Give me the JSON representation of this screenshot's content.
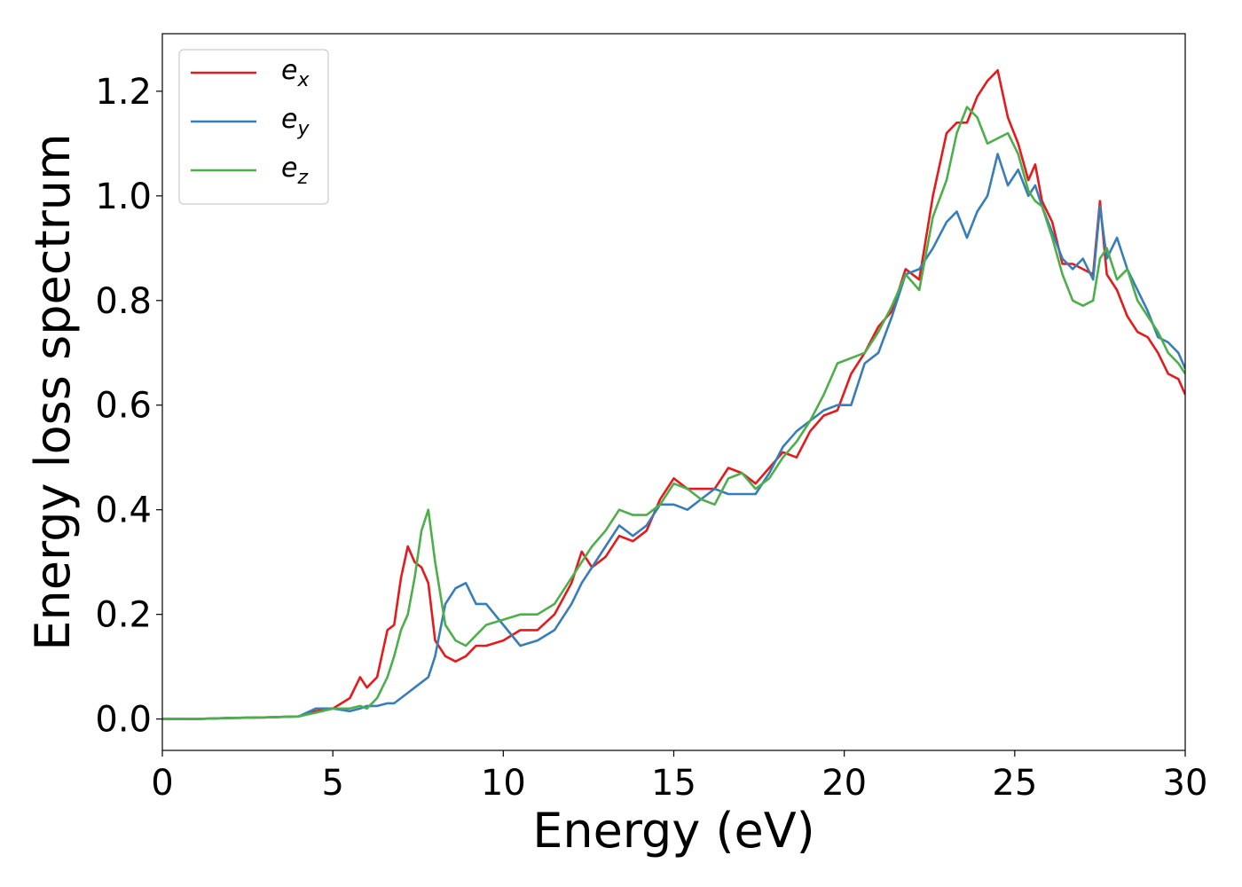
{
  "chart_data": {
    "type": "line",
    "title": "",
    "xlabel": "Energy (eV)",
    "ylabel": "Energy loss spectrum",
    "xlim": [
      0,
      30
    ],
    "ylim": [
      -0.06,
      1.31
    ],
    "xticks": [
      0,
      5,
      10,
      15,
      20,
      25,
      30
    ],
    "xtick_labels": [
      "0",
      "5",
      "10",
      "15",
      "20",
      "25",
      "30"
    ],
    "yticks": [
      0.0,
      0.2,
      0.4,
      0.6,
      0.8,
      1.0,
      1.2
    ],
    "ytick_labels": [
      "0.0",
      "0.2",
      "0.4",
      "0.6",
      "0.8",
      "1.0",
      "1.2"
    ],
    "grid": false,
    "legend_position": "top-left",
    "x": [
      0,
      1,
      2,
      3,
      4,
      4.5,
      5,
      5.5,
      5.8,
      6,
      6.3,
      6.6,
      6.8,
      7,
      7.2,
      7.4,
      7.6,
      7.8,
      8,
      8.3,
      8.6,
      8.9,
      9.2,
      9.5,
      10,
      10.5,
      11,
      11.5,
      12,
      12.3,
      12.6,
      13,
      13.4,
      13.8,
      14.2,
      14.6,
      15,
      15.4,
      15.8,
      16.2,
      16.6,
      17,
      17.4,
      17.8,
      18.2,
      18.6,
      19,
      19.4,
      19.8,
      20.2,
      20.6,
      21,
      21.4,
      21.8,
      22.2,
      22.6,
      23,
      23.3,
      23.6,
      23.9,
      24.2,
      24.5,
      24.8,
      25.1,
      25.4,
      25.6,
      25.8,
      26.1,
      26.4,
      26.7,
      27,
      27.3,
      27.5,
      27.7,
      28,
      28.3,
      28.6,
      28.9,
      29.2,
      29.5,
      29.8,
      30
    ],
    "series": [
      {
        "name": "e",
        "name_subscript": "x",
        "color": "#e41a1c",
        "values": [
          0,
          0,
          0.002,
          0.003,
          0.005,
          0.015,
          0.02,
          0.04,
          0.08,
          0.06,
          0.08,
          0.17,
          0.18,
          0.27,
          0.33,
          0.3,
          0.29,
          0.26,
          0.15,
          0.12,
          0.11,
          0.12,
          0.14,
          0.14,
          0.15,
          0.17,
          0.17,
          0.2,
          0.26,
          0.32,
          0.29,
          0.31,
          0.35,
          0.34,
          0.36,
          0.42,
          0.46,
          0.44,
          0.44,
          0.44,
          0.48,
          0.47,
          0.45,
          0.48,
          0.51,
          0.5,
          0.55,
          0.58,
          0.59,
          0.66,
          0.7,
          0.75,
          0.78,
          0.86,
          0.84,
          1.0,
          1.12,
          1.14,
          1.14,
          1.19,
          1.22,
          1.24,
          1.15,
          1.1,
          1.03,
          1.06,
          0.99,
          0.95,
          0.87,
          0.87,
          0.86,
          0.85,
          0.99,
          0.85,
          0.82,
          0.77,
          0.74,
          0.73,
          0.7,
          0.66,
          0.65,
          0.62
        ]
      },
      {
        "name": "e",
        "name_subscript": "y",
        "color": "#377eb8",
        "values": [
          0,
          0,
          0.002,
          0.003,
          0.005,
          0.02,
          0.02,
          0.015,
          0.02,
          0.025,
          0.025,
          0.03,
          0.03,
          0.04,
          0.05,
          0.06,
          0.07,
          0.08,
          0.12,
          0.22,
          0.25,
          0.26,
          0.22,
          0.22,
          0.18,
          0.14,
          0.15,
          0.17,
          0.22,
          0.26,
          0.29,
          0.33,
          0.37,
          0.35,
          0.37,
          0.41,
          0.41,
          0.4,
          0.42,
          0.44,
          0.43,
          0.43,
          0.43,
          0.47,
          0.52,
          0.55,
          0.57,
          0.59,
          0.6,
          0.6,
          0.68,
          0.7,
          0.77,
          0.85,
          0.86,
          0.9,
          0.95,
          0.97,
          0.92,
          0.97,
          1.0,
          1.08,
          1.02,
          1.05,
          1.0,
          1.02,
          0.98,
          0.93,
          0.88,
          0.86,
          0.88,
          0.84,
          0.98,
          0.88,
          0.92,
          0.86,
          0.82,
          0.78,
          0.73,
          0.72,
          0.7,
          0.67
        ]
      },
      {
        "name": "e",
        "name_subscript": "z",
        "color": "#4daf4a",
        "values": [
          0,
          0,
          0.002,
          0.003,
          0.005,
          0.012,
          0.02,
          0.02,
          0.025,
          0.02,
          0.04,
          0.08,
          0.12,
          0.17,
          0.2,
          0.27,
          0.36,
          0.4,
          0.3,
          0.18,
          0.15,
          0.14,
          0.16,
          0.18,
          0.19,
          0.2,
          0.2,
          0.22,
          0.27,
          0.3,
          0.33,
          0.36,
          0.4,
          0.39,
          0.39,
          0.41,
          0.45,
          0.44,
          0.42,
          0.41,
          0.46,
          0.47,
          0.44,
          0.46,
          0.5,
          0.53,
          0.57,
          0.62,
          0.68,
          0.69,
          0.7,
          0.74,
          0.79,
          0.85,
          0.82,
          0.96,
          1.03,
          1.12,
          1.17,
          1.15,
          1.1,
          1.11,
          1.12,
          1.08,
          1.01,
          0.99,
          0.98,
          0.92,
          0.85,
          0.8,
          0.79,
          0.8,
          0.88,
          0.9,
          0.84,
          0.86,
          0.8,
          0.77,
          0.74,
          0.7,
          0.68,
          0.66
        ]
      }
    ]
  }
}
